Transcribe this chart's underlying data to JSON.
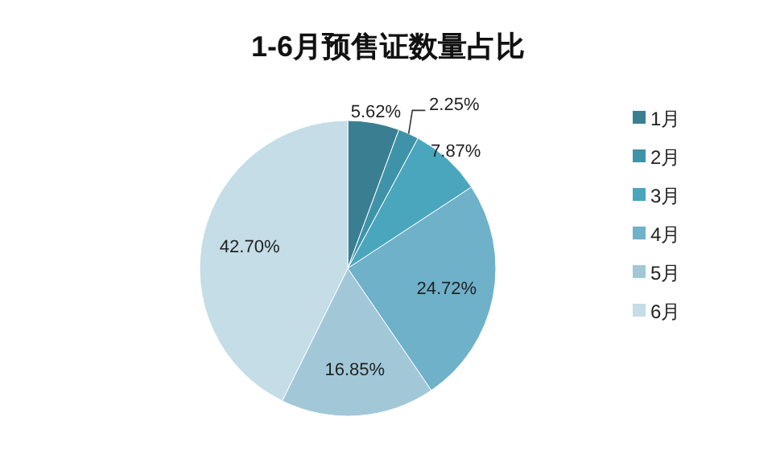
{
  "chart_data": {
    "type": "pie",
    "title": "1-6月预售证数量占比",
    "categories": [
      "1月",
      "2月",
      "3月",
      "4月",
      "5月",
      "6月"
    ],
    "values": [
      5.62,
      2.25,
      7.87,
      24.72,
      16.85,
      42.7
    ],
    "colors": [
      "#3a7f91",
      "#3f93a8",
      "#4aa6bd",
      "#6eb1c9",
      "#a2c8d8",
      "#c4dde6"
    ],
    "value_labels": [
      "5.62%",
      "2.25%",
      "7.87%",
      "24.72%",
      "16.85%",
      "42.70%"
    ],
    "legend": "right"
  }
}
